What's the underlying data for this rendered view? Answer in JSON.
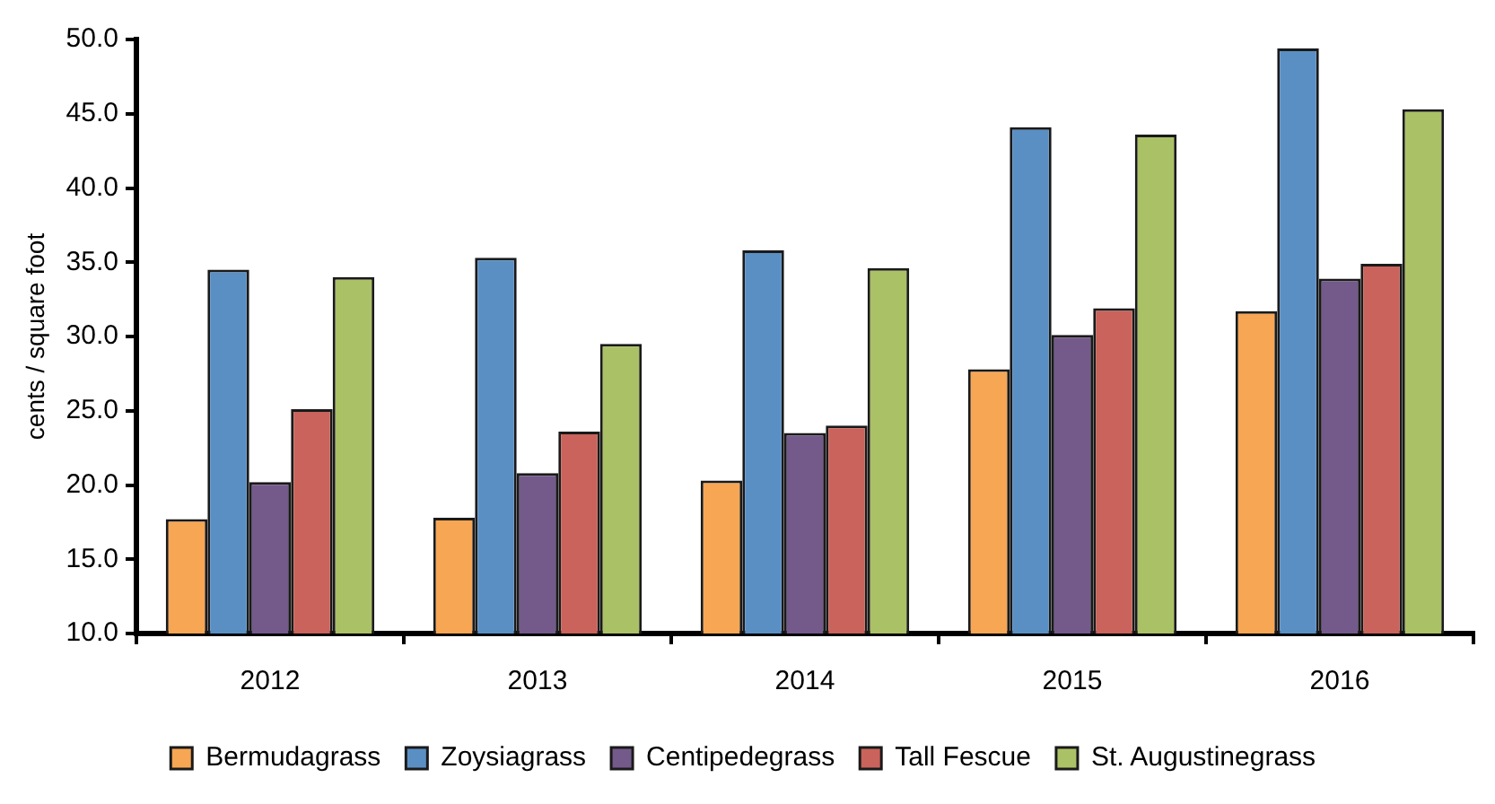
{
  "chart_data": {
    "type": "bar",
    "ylabel": "cents / square foot",
    "categories": [
      "2012",
      "2013",
      "2014",
      "2015",
      "2016"
    ],
    "series": [
      {
        "name": "Bermudagrass",
        "color": "#f7a654",
        "values": [
          17.7,
          17.8,
          20.3,
          27.8,
          31.7
        ]
      },
      {
        "name": "Zoysiagrass",
        "color": "#5a8fc4",
        "values": [
          34.5,
          35.3,
          35.8,
          44.1,
          49.4
        ]
      },
      {
        "name": "Centipedegrass",
        "color": "#745a8a",
        "values": [
          20.2,
          20.8,
          23.5,
          30.1,
          33.9
        ]
      },
      {
        "name": "Tall Fescue",
        "color": "#c9635b",
        "values": [
          25.1,
          23.6,
          24.0,
          31.9,
          34.9
        ]
      },
      {
        "name": "St. Augustinegrass",
        "color": "#abc166",
        "values": [
          34.0,
          29.5,
          34.6,
          43.6,
          45.3
        ]
      }
    ],
    "ylim": [
      10,
      50
    ],
    "yticks": [
      {
        "value": 10,
        "label": "10.0"
      },
      {
        "value": 15,
        "label": "15.0"
      },
      {
        "value": 20,
        "label": "20.0"
      },
      {
        "value": 25,
        "label": "25.0"
      },
      {
        "value": 30,
        "label": "30.0"
      },
      {
        "value": 35,
        "label": "35.0"
      },
      {
        "value": 40,
        "label": "40.0"
      },
      {
        "value": 45,
        "label": "45.0"
      },
      {
        "value": 50,
        "label": "50.0"
      }
    ],
    "legend": "bottom"
  }
}
